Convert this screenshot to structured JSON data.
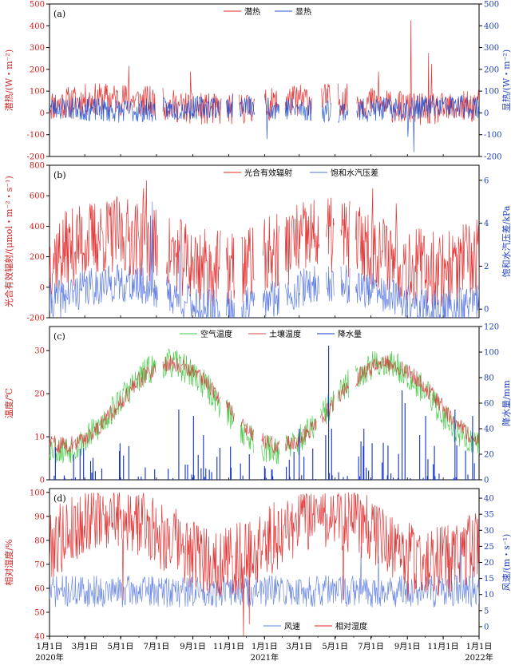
{
  "figure": {
    "x_axis": {
      "tick_labels": [
        "1月1日",
        "3月1日",
        "5月1日",
        "7月1日",
        "9月1日",
        "11月1日",
        "1月1日",
        "3月1日",
        "5月1日",
        "7月1日",
        "9月1日",
        "11月1日",
        "1月1日"
      ],
      "tick_days": [
        0,
        60,
        121,
        182,
        244,
        305,
        366,
        425,
        486,
        547,
        609,
        670,
        731
      ],
      "year_labels": [
        "2020年",
        "2021年",
        "2022年"
      ],
      "year_label_days": [
        0,
        366,
        731
      ],
      "range_days": [
        0,
        731
      ]
    }
  },
  "chart_data": [
    {
      "id": "a",
      "type": "line",
      "panel_label": "(a)",
      "ylabel_left": "潜热/(W・m⁻²)",
      "ylabel_right": "显热/(W・m⁻²)",
      "ylim_left": [
        -200,
        500
      ],
      "ylim_right": [
        -200,
        500
      ],
      "yticks_left": [
        -200,
        -100,
        0,
        100,
        200,
        300,
        400,
        500
      ],
      "yticks_right": [
        -200,
        -100,
        0,
        100,
        200,
        300,
        400,
        500
      ],
      "legend": "top-center",
      "gaps": [
        [
          182,
          192
        ],
        [
          293,
          300
        ],
        [
          313,
          322
        ],
        [
          350,
          365
        ],
        [
          392,
          400
        ],
        [
          447,
          462
        ],
        [
          480,
          490
        ],
        [
          509,
          522
        ]
      ],
      "series": [
        {
          "name": "潜热",
          "axis": "left",
          "color": "#e02020",
          "base": 40,
          "amp": 75,
          "season": 25,
          "phase": 0.2,
          "seed": 11,
          "spikes": [
            [
              135,
              215
            ],
            [
              240,
              190
            ],
            [
              615,
              425
            ],
            [
              645,
              275
            ],
            [
              650,
              225
            ],
            [
              560,
              190
            ]
          ]
        },
        {
          "name": "显热",
          "axis": "right",
          "color": "#2050d0",
          "base": 20,
          "amp": 55,
          "season": -10,
          "phase": 0.7,
          "seed": 23,
          "spikes": [
            [
              620,
              -180
            ],
            [
              300,
              -90
            ],
            [
              370,
              -120
            ],
            [
              610,
              -110
            ]
          ]
        }
      ]
    },
    {
      "id": "b",
      "type": "line",
      "panel_label": "(b)",
      "ylabel_left": "光合有效辐射/(μmol・m⁻²・s⁻¹)",
      "ylabel_right": "饱和水汽压差/kPa",
      "ylim_left": [
        -200,
        800
      ],
      "ylim_right": [
        -0.4,
        6.7
      ],
      "yticks_left": [
        -200,
        0,
        200,
        400,
        600,
        800
      ],
      "yticks_right": [
        0,
        2,
        4,
        6
      ],
      "legend": "top-center",
      "gaps": [
        [
          185,
          198
        ],
        [
          292,
          300
        ],
        [
          316,
          326
        ],
        [
          350,
          362
        ],
        [
          392,
          400
        ],
        [
          460,
          470
        ],
        [
          485,
          495
        ],
        [
          512,
          520
        ]
      ],
      "series": [
        {
          "name": "光合有效辐射",
          "axis": "left",
          "color": "#e02020",
          "base": 230,
          "amp": 260,
          "season": 110,
          "phase": 0.35,
          "seed": 37,
          "spikes": [
            [
              165,
              700
            ],
            [
              160,
              650
            ],
            [
              550,
              650
            ],
            [
              590,
              550
            ]
          ]
        },
        {
          "name": "饱和水汽压差",
          "axis": "right",
          "color": "#5070e0",
          "base": 0.6,
          "amp": 0.9,
          "season": 0.6,
          "phase": 0.45,
          "seed": 41,
          "spikes": [
            [
              175,
              5.0
            ],
            [
              172,
              4.3
            ],
            [
              222,
              3.0
            ],
            [
              320,
              3.4
            ],
            [
              470,
              2.2
            ]
          ]
        }
      ]
    },
    {
      "id": "c",
      "type": "line+bar",
      "panel_label": "(c)",
      "ylabel_left": "温度/℃",
      "ylabel_right": "降水量/mm",
      "ylim_left": [
        0,
        35.6
      ],
      "ylim_right": [
        0,
        120
      ],
      "yticks_left": [
        0,
        10,
        20,
        30
      ],
      "yticks_right": [
        0,
        20,
        40,
        60,
        80,
        100,
        120
      ],
      "legend": "top-center",
      "gaps": [
        [
          182,
          192
        ],
        [
          292,
          300
        ],
        [
          315,
          324
        ],
        [
          348,
          360
        ],
        [
          392,
          400
        ],
        [
          455,
          460
        ],
        [
          485,
          490
        ],
        [
          510,
          520
        ]
      ],
      "series": [
        {
          "name": "空气温度",
          "axis": "left",
          "color": "#3cc83c",
          "seed": 53
        },
        {
          "name": "土壤温度",
          "axis": "left",
          "color": "#d04040",
          "seed": 59
        },
        {
          "name": "降水量",
          "axis": "right",
          "color": "#1030d0",
          "type": "bar",
          "seed": 61,
          "spikes": [
            [
              190,
              82
            ],
            [
              220,
              55
            ],
            [
              245,
              50
            ],
            [
              262,
              35
            ],
            [
              290,
              25
            ],
            [
              320,
              15
            ],
            [
              340,
              20
            ],
            [
              425,
              40
            ],
            [
              470,
              35
            ],
            [
              475,
              105
            ],
            [
              480,
              40
            ],
            [
              515,
              25
            ],
            [
              530,
              30
            ],
            [
              535,
              40
            ],
            [
              600,
              70
            ],
            [
              605,
              60
            ],
            [
              630,
              35
            ],
            [
              640,
              50
            ],
            [
              690,
              55
            ],
            [
              720,
              50
            ]
          ]
        }
      ]
    },
    {
      "id": "d",
      "type": "line",
      "panel_label": "(d)",
      "ylabel_left": "相对湿度/%",
      "ylabel_right": "风速/(m・s⁻¹)",
      "ylim_left": [
        40,
        101.6
      ],
      "ylim_right": [
        -3,
        43
      ],
      "yticks_left": [
        40,
        50,
        60,
        70,
        80,
        90,
        100
      ],
      "yticks_right": [
        0,
        5,
        10,
        15,
        20,
        25,
        30,
        35,
        40
      ],
      "legend": "bottom-center",
      "gaps": [],
      "series": [
        {
          "name": "风速",
          "axis": "right",
          "color": "#6080e0",
          "base": 11,
          "amp": 5,
          "season": 0,
          "phase": 0,
          "seed": 71,
          "spikes": [
            [
              530,
              25
            ],
            [
              560,
              22
            ],
            [
              700,
              28
            ],
            [
              720,
              20
            ]
          ]
        },
        {
          "name": "相对湿度",
          "axis": "left",
          "color": "#e02020",
          "seed": 79,
          "spikes": [
            [
              330,
              40
            ],
            [
              340,
              45
            ],
            [
              125,
              55
            ],
            [
              500,
              55
            ],
            [
              610,
              55
            ]
          ]
        }
      ]
    }
  ]
}
